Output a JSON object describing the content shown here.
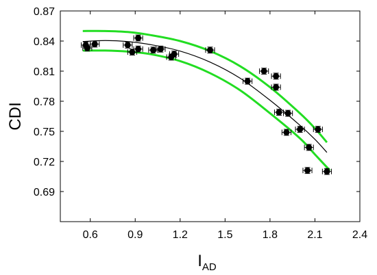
{
  "chart_data": {
    "type": "scatter",
    "title": "",
    "xlabel": "I",
    "xlabel_subscript": "AD",
    "ylabel": "CDI",
    "xlim": [
      0.4,
      2.4
    ],
    "ylim": [
      0.66,
      0.87
    ],
    "x_ticks": [
      "0.6",
      "0.9",
      "1.2",
      "1.5",
      "1.8",
      "2.1",
      "2.4"
    ],
    "y_ticks": [
      "0.87",
      "0.84",
      "0.81",
      "0.78",
      "0.75",
      "0.72",
      "0.69"
    ],
    "grid": false,
    "legend": "none",
    "series": [
      {
        "marker": "filled-circle-with-error-bars",
        "color": "#000000",
        "x_error": 0.03,
        "y_error": 0.003,
        "points": [
          {
            "x": 0.57,
            "y": 0.836
          },
          {
            "x": 0.58,
            "y": 0.833
          },
          {
            "x": 0.63,
            "y": 0.837
          },
          {
            "x": 0.85,
            "y": 0.836
          },
          {
            "x": 0.88,
            "y": 0.829
          },
          {
            "x": 0.92,
            "y": 0.843
          },
          {
            "x": 0.92,
            "y": 0.832
          },
          {
            "x": 1.02,
            "y": 0.831
          },
          {
            "x": 1.07,
            "y": 0.832
          },
          {
            "x": 1.14,
            "y": 0.824
          },
          {
            "x": 1.16,
            "y": 0.827
          },
          {
            "x": 1.4,
            "y": 0.831
          },
          {
            "x": 1.65,
            "y": 0.8
          },
          {
            "x": 1.76,
            "y": 0.81
          },
          {
            "x": 1.84,
            "y": 0.794
          },
          {
            "x": 1.84,
            "y": 0.805
          },
          {
            "x": 1.86,
            "y": 0.769
          },
          {
            "x": 1.91,
            "y": 0.749
          },
          {
            "x": 1.92,
            "y": 0.768
          },
          {
            "x": 2.0,
            "y": 0.752
          },
          {
            "x": 2.06,
            "y": 0.734
          },
          {
            "x": 2.05,
            "y": 0.711
          },
          {
            "x": 2.12,
            "y": 0.752
          },
          {
            "x": 2.18,
            "y": 0.71
          }
        ]
      }
    ],
    "curves": [
      {
        "role": "fit",
        "color": "#000000",
        "points": [
          [
            0.55,
            0.8395
          ],
          [
            0.7,
            0.8405
          ],
          [
            0.85,
            0.8395
          ],
          [
            1.0,
            0.8365
          ],
          [
            1.2,
            0.83
          ],
          [
            1.4,
            0.819
          ],
          [
            1.6,
            0.803
          ],
          [
            1.8,
            0.781
          ],
          [
            2.0,
            0.756
          ],
          [
            2.1,
            0.742
          ],
          [
            2.18,
            0.729
          ]
        ]
      },
      {
        "role": "upper-bound",
        "color": "#22dd22",
        "points": [
          [
            0.55,
            0.85
          ],
          [
            0.7,
            0.85
          ],
          [
            0.85,
            0.849
          ],
          [
            1.0,
            0.846
          ],
          [
            1.2,
            0.84
          ],
          [
            1.4,
            0.83
          ],
          [
            1.6,
            0.815
          ],
          [
            1.8,
            0.794
          ],
          [
            2.0,
            0.768
          ],
          [
            2.1,
            0.753
          ],
          [
            2.18,
            0.739
          ]
        ]
      },
      {
        "role": "lower-bound",
        "color": "#22dd22",
        "points": [
          [
            0.55,
            0.8305
          ],
          [
            0.7,
            0.8305
          ],
          [
            0.85,
            0.8295
          ],
          [
            1.0,
            0.827
          ],
          [
            1.2,
            0.82
          ],
          [
            1.4,
            0.808
          ],
          [
            1.6,
            0.791
          ],
          [
            1.8,
            0.768
          ],
          [
            2.0,
            0.743
          ],
          [
            2.1,
            0.727
          ],
          [
            2.2,
            0.711
          ]
        ]
      }
    ]
  }
}
